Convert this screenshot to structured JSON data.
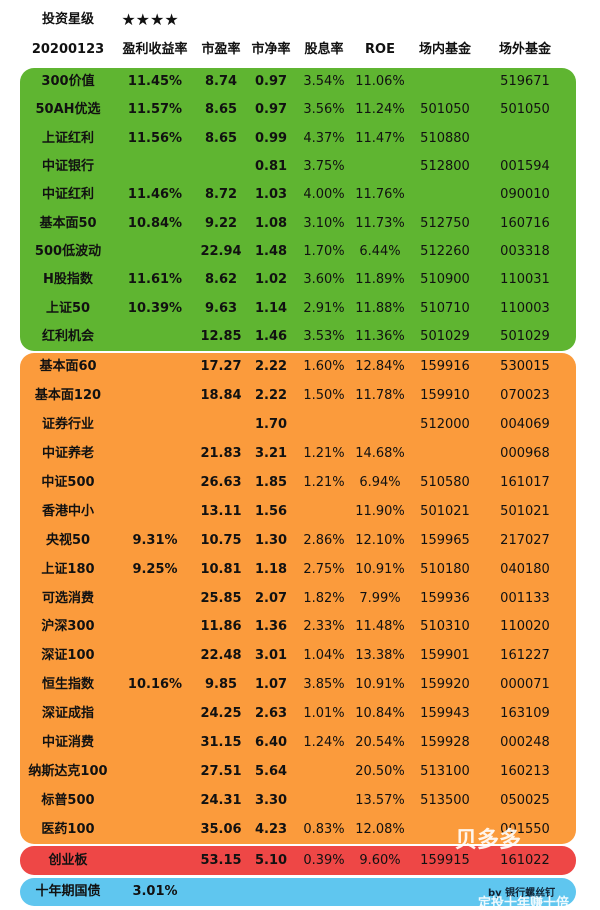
{
  "header": {
    "label": "投资星级",
    "stars": "★★★★"
  },
  "columns": [
    "20200123",
    "盈利收益率",
    "市盈率",
    "市净率",
    "股息率",
    "ROE",
    "场内基金",
    "场外基金"
  ],
  "groups": [
    {
      "rows": [
        [
          "300价值",
          "11.45%",
          "8.74",
          "0.97",
          "3.54%",
          "11.06%",
          null,
          "519671"
        ],
        [
          "50AH优选",
          "11.57%",
          "8.65",
          "0.97",
          "3.56%",
          "11.24%",
          "501050",
          "501050"
        ],
        [
          "上证红利",
          "11.56%",
          "8.65",
          "0.99",
          "4.37%",
          "11.47%",
          "510880",
          null
        ],
        [
          "中证银行",
          null,
          null,
          "0.81",
          "3.75%",
          null,
          "512800",
          "001594"
        ],
        [
          "中证红利",
          "11.46%",
          "8.72",
          "1.03",
          "4.00%",
          "11.76%",
          null,
          "090010"
        ],
        [
          "基本面50",
          "10.84%",
          "9.22",
          "1.08",
          "3.10%",
          "11.73%",
          "512750",
          "160716"
        ],
        [
          "500低波动",
          null,
          "22.94",
          "1.48",
          "1.70%",
          "6.44%",
          "512260",
          "003318"
        ],
        [
          "H股指数",
          "11.61%",
          "8.62",
          "1.02",
          "3.60%",
          "11.89%",
          "510900",
          "110031"
        ],
        [
          "上证50",
          "10.39%",
          "9.63",
          "1.14",
          "2.91%",
          "11.88%",
          "510710",
          "110003"
        ],
        [
          "红利机会",
          null,
          "12.85",
          "1.46",
          "3.53%",
          "11.36%",
          "501029",
          "501029"
        ]
      ]
    },
    {
      "rows": [
        [
          "基本面60",
          null,
          "17.27",
          "2.22",
          "1.60%",
          "12.84%",
          "159916",
          "530015"
        ],
        [
          "基本面120",
          null,
          "18.84",
          "2.22",
          "1.50%",
          "11.78%",
          "159910",
          "070023"
        ],
        [
          "证券行业",
          null,
          null,
          "1.70",
          null,
          null,
          "512000",
          "004069"
        ],
        [
          "中证养老",
          null,
          "21.83",
          "3.21",
          "1.21%",
          "14.68%",
          null,
          "000968"
        ],
        [
          "中证500",
          null,
          "26.63",
          "1.85",
          "1.21%",
          "6.94%",
          "510580",
          "161017"
        ],
        [
          "香港中小",
          null,
          "13.11",
          "1.56",
          null,
          "11.90%",
          "501021",
          "501021"
        ],
        [
          "央视50",
          "9.31%",
          "10.75",
          "1.30",
          "2.86%",
          "12.10%",
          "159965",
          "217027"
        ],
        [
          "上证180",
          "9.25%",
          "10.81",
          "1.18",
          "2.75%",
          "10.91%",
          "510180",
          "040180"
        ],
        [
          "可选消费",
          null,
          "25.85",
          "2.07",
          "1.82%",
          "7.99%",
          "159936",
          "001133"
        ],
        [
          "沪深300",
          null,
          "11.86",
          "1.36",
          "2.33%",
          "11.48%",
          "510310",
          "110020"
        ],
        [
          "深证100",
          null,
          "22.48",
          "3.01",
          "1.04%",
          "13.38%",
          "159901",
          "161227"
        ],
        [
          "恒生指数",
          "10.16%",
          "9.85",
          "1.07",
          "3.85%",
          "10.91%",
          "159920",
          "000071"
        ],
        [
          "深证成指",
          null,
          "24.25",
          "2.63",
          "1.01%",
          "10.84%",
          "159943",
          "163109"
        ],
        [
          "中证消费",
          null,
          "31.15",
          "6.40",
          "1.24%",
          "20.54%",
          "159928",
          "000248"
        ],
        [
          "纳斯达克100",
          null,
          "27.51",
          "5.64",
          null,
          "20.50%",
          "513100",
          "160213"
        ],
        [
          "标普500",
          null,
          "24.31",
          "3.30",
          null,
          "13.57%",
          "513500",
          "050025"
        ],
        [
          "医药100",
          null,
          "35.06",
          "4.23",
          "0.83%",
          "12.08%",
          null,
          "001550"
        ]
      ]
    },
    {
      "rows": [
        [
          "创业板",
          null,
          "53.15",
          "5.10",
          "0.39%",
          "9.60%",
          "159915",
          "161022"
        ]
      ]
    },
    {
      "rows": [
        [
          "十年期国债",
          "3.01%",
          null,
          null,
          null,
          null,
          null,
          null
        ]
      ]
    }
  ],
  "watermark": {
    "brand": "贝多多",
    "slogan": "定投十年赚十倍",
    "author": "by 银行螺丝钉"
  }
}
